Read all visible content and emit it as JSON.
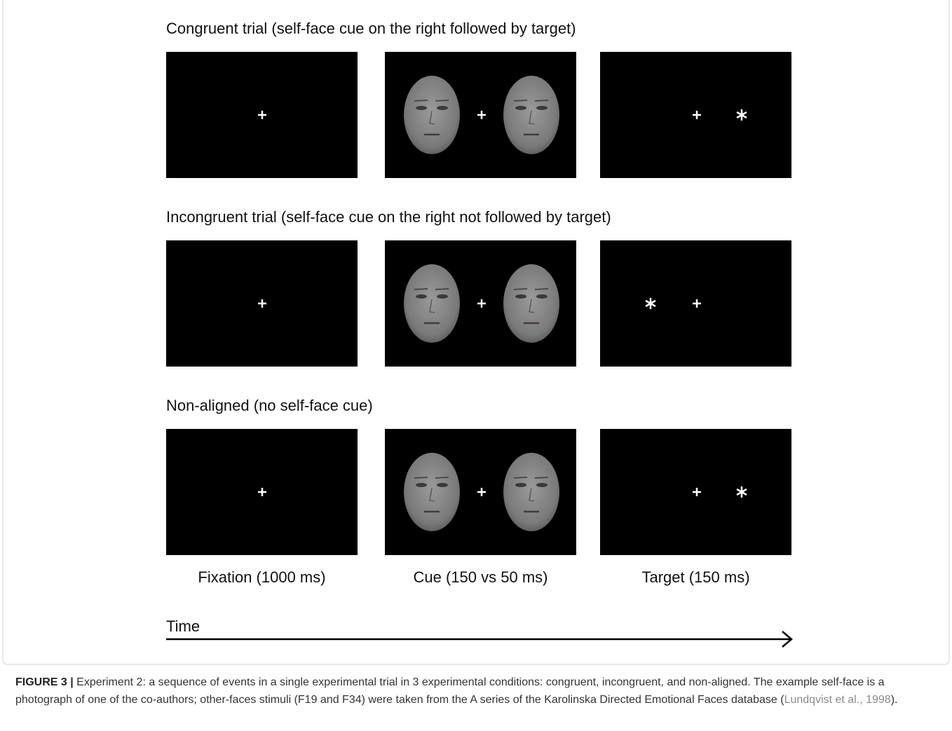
{
  "rows": [
    {
      "title": "Congruent trial (self-face cue on the right followed by target)"
    },
    {
      "title": "Incongruent trial (self-face cue on the right not followed by target)"
    },
    {
      "title": "Non-aligned (no self-face cue)"
    }
  ],
  "phases": [
    "Fixation (1000 ms)",
    "Cue (150 vs 50 ms)",
    "Target (150 ms)"
  ],
  "time_label": "Time",
  "caption": {
    "label": "FIGURE 3 |",
    "text": "Experiment 2: a sequence of events in a single experimental trial in 3 experimental conditions: congruent, incongruent, and non-aligned. The example self-face is a photograph of one of the co-authors; other-faces stimuli (F19 and F34) were taken from the A series of the Karolinska Directed Emotional Faces database (",
    "citation": "Lundqvist et al., 1998",
    "close": ")."
  }
}
